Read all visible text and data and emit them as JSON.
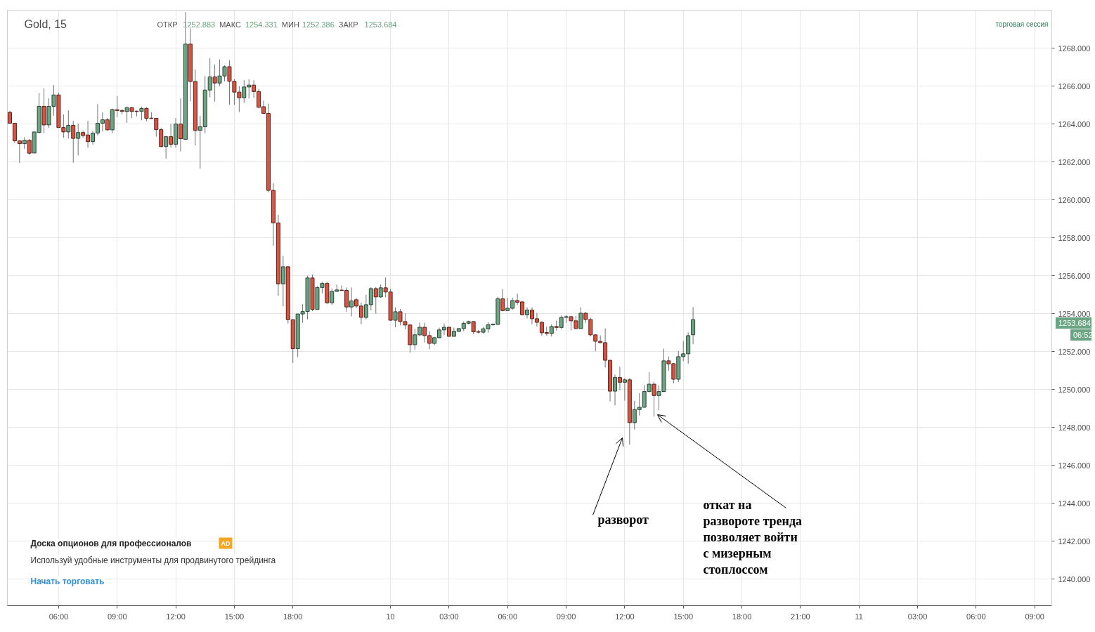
{
  "chart_data": {
    "type": "candlestick",
    "title": "Gold, 15",
    "categories": [
      null,
      null,
      null,
      null,
      null,
      null,
      null,
      null,
      null,
      null,
      "06:00",
      null,
      null,
      null,
      null,
      null,
      null,
      null,
      null,
      null,
      null,
      null,
      "09:00",
      null,
      null,
      null,
      null,
      null,
      null,
      null,
      null,
      null,
      null,
      null,
      "12:00",
      null,
      null,
      null,
      null,
      null,
      null,
      null,
      null,
      null,
      null,
      null,
      "15:00",
      null,
      null,
      null,
      null,
      null,
      null,
      null,
      null,
      null,
      null,
      null,
      "18:00",
      null,
      null,
      null,
      null,
      null,
      null,
      null,
      null,
      null,
      null,
      null,
      null,
      null,
      null,
      null,
      null,
      null,
      null,
      null,
      "10",
      null,
      null,
      null,
      null,
      null,
      null,
      null,
      null,
      null,
      null,
      null,
      "03:00",
      null,
      null,
      null,
      null,
      null,
      null,
      null,
      null,
      null,
      null,
      null,
      "06:00",
      null,
      null,
      null,
      null,
      null,
      null,
      null,
      null,
      null,
      null,
      null,
      "09:00",
      null,
      null,
      null,
      null,
      null,
      null,
      null,
      null,
      null,
      null,
      null,
      "12:00",
      null,
      null,
      null,
      null,
      null,
      null,
      null,
      null,
      null,
      null,
      null,
      "15:00",
      null,
      null,
      null,
      null,
      null,
      null,
      null,
      null,
      null,
      null,
      null,
      "18:00",
      null,
      null,
      null,
      null,
      null,
      null,
      null,
      null,
      null,
      null,
      null,
      "21:00",
      null,
      null,
      null,
      null,
      null,
      null,
      null,
      null,
      null,
      null,
      null,
      "11",
      null,
      null,
      null,
      null,
      null,
      null,
      null,
      null,
      null,
      null,
      null,
      "03:00",
      null,
      null,
      null,
      null,
      null,
      null,
      null,
      null,
      null,
      null,
      null,
      "06:00",
      null,
      null,
      null,
      null,
      null,
      null,
      null,
      null,
      null,
      null,
      null,
      "09:00",
      null,
      null,
      null
    ],
    "ohlc": [
      [
        1264.61,
        1264.7,
        1264.04,
        1264.04
      ],
      [
        1264.04,
        1264.04,
        1262.99,
        1263.11
      ],
      [
        1263.11,
        1263.11,
        1261.94,
        1262.96
      ],
      [
        1262.96,
        1263.3,
        1262.68,
        1263.14
      ],
      [
        1263.14,
        1263.2,
        1262.36,
        1262.46
      ],
      [
        1262.47,
        1263.6,
        1262.45,
        1263.58
      ],
      [
        1263.55,
        1265.63,
        1263.52,
        1264.93
      ],
      [
        1264.93,
        1265.88,
        1263.52,
        1263.95
      ],
      [
        1263.95,
        1265.35,
        1263.8,
        1264.93
      ],
      [
        1264.93,
        1266.05,
        1264.43,
        1265.53
      ],
      [
        1265.53,
        1265.65,
        1263.81,
        1263.81
      ],
      [
        1263.81,
        1264.5,
        1263.27,
        1263.58
      ],
      [
        1263.58,
        1264.72,
        1263.23,
        1263.93
      ],
      [
        1263.93,
        1264.16,
        1261.96,
        1263.24
      ],
      [
        1263.24,
        1264.01,
        1262.34,
        1263.55
      ],
      [
        1263.55,
        1263.66,
        1263.27,
        1263.39
      ],
      [
        1263.42,
        1264.16,
        1262.75,
        1263.07
      ],
      [
        1263.07,
        1263.64,
        1262.92,
        1263.52
      ],
      [
        1263.52,
        1265.04,
        1263.39,
        1264.04
      ],
      [
        1264.04,
        1264.61,
        1263.61,
        1264.22
      ],
      [
        1264.22,
        1264.32,
        1263.64,
        1263.69
      ],
      [
        1263.69,
        1264.82,
        1263.52,
        1264.76
      ],
      [
        1264.75,
        1265.47,
        1264.36,
        1264.71
      ],
      [
        1264.71,
        1264.78,
        1264.51,
        1264.66
      ],
      [
        1264.66,
        1264.92,
        1264.06,
        1264.86
      ],
      [
        1264.86,
        1264.91,
        1264.31,
        1264.66
      ],
      [
        1264.68,
        1264.7,
        1264.4,
        1264.66
      ],
      [
        1264.66,
        1264.92,
        1264.2,
        1264.82
      ],
      [
        1264.82,
        1264.88,
        1264.14,
        1264.3
      ],
      [
        1264.31,
        1264.61,
        1264.26,
        1264.29
      ],
      [
        1264.3,
        1264.32,
        1263.33,
        1263.7
      ],
      [
        1263.7,
        1263.8,
        1262.77,
        1262.81
      ],
      [
        1262.81,
        1263.35,
        1262.17,
        1263.33
      ],
      [
        1263.33,
        1264.01,
        1262.75,
        1262.93
      ],
      [
        1262.93,
        1264.32,
        1262.75,
        1264.0
      ],
      [
        1264.0,
        1265.35,
        1262.55,
        1263.22
      ],
      [
        1263.19,
        1269.9,
        1263.17,
        1268.21
      ],
      [
        1268.21,
        1269.04,
        1265.19,
        1266.24
      ],
      [
        1266.24,
        1266.87,
        1262.87,
        1263.66
      ],
      [
        1263.66,
        1264.42,
        1261.65,
        1263.85
      ],
      [
        1263.85,
        1266.53,
        1263.52,
        1265.79
      ],
      [
        1265.79,
        1267.47,
        1265.4,
        1266.48
      ],
      [
        1266.48,
        1267.14,
        1265.18,
        1266.16
      ],
      [
        1266.16,
        1267.4,
        1266.0,
        1266.53
      ],
      [
        1266.53,
        1267.09,
        1266.25,
        1267.02
      ],
      [
        1267.02,
        1267.37,
        1265.01,
        1266.25
      ],
      [
        1266.25,
        1266.37,
        1265.01,
        1265.68
      ],
      [
        1265.68,
        1266.0,
        1264.63,
        1265.38
      ],
      [
        1265.38,
        1266.31,
        1265.11,
        1265.95
      ],
      [
        1265.95,
        1266.37,
        1265.34,
        1266.05
      ],
      [
        1266.05,
        1266.31,
        1265.38,
        1265.71
      ],
      [
        1265.71,
        1265.85,
        1264.84,
        1264.88
      ],
      [
        1264.91,
        1265.23,
        1264.53,
        1264.56
      ],
      [
        1264.56,
        1265.07,
        1260.39,
        1260.5
      ],
      [
        1260.5,
        1260.88,
        1257.58,
        1258.78
      ],
      [
        1258.78,
        1259.2,
        1254.94,
        1255.57
      ],
      [
        1255.57,
        1257.04,
        1254.39,
        1256.47
      ],
      [
        1256.47,
        1256.5,
        1253.48,
        1253.68
      ],
      [
        1253.68,
        1253.7,
        1251.4,
        1252.15
      ],
      [
        1252.15,
        1253.98,
        1251.71,
        1253.98
      ],
      [
        1253.98,
        1254.51,
        1253.52,
        1254.11
      ],
      [
        1254.11,
        1256.0,
        1253.7,
        1255.88
      ],
      [
        1255.88,
        1256.06,
        1254.14,
        1254.22
      ],
      [
        1254.22,
        1255.44,
        1254.2,
        1255.38
      ],
      [
        1255.38,
        1255.69,
        1255.07,
        1255.59
      ],
      [
        1255.59,
        1255.69,
        1254.51,
        1254.57
      ],
      [
        1254.57,
        1255.32,
        1254.45,
        1255.17
      ],
      [
        1255.17,
        1255.53,
        1255.16,
        1255.25
      ],
      [
        1255.24,
        1255.49,
        1255.2,
        1255.22
      ],
      [
        1255.23,
        1255.38,
        1254.1,
        1254.35
      ],
      [
        1254.35,
        1255.38,
        1253.85,
        1254.67
      ],
      [
        1254.73,
        1254.83,
        1254.28,
        1254.4
      ],
      [
        1254.4,
        1254.58,
        1253.44,
        1253.8
      ],
      [
        1253.8,
        1254.99,
        1253.69,
        1254.47
      ],
      [
        1254.47,
        1255.4,
        1254.16,
        1255.32
      ],
      [
        1255.32,
        1255.4,
        1254.0,
        1254.88
      ],
      [
        1254.88,
        1255.54,
        1254.83,
        1255.36
      ],
      [
        1255.36,
        1255.91,
        1254.86,
        1255.14
      ],
      [
        1255.14,
        1255.3,
        1253.63,
        1253.65
      ],
      [
        1253.65,
        1254.33,
        1253.28,
        1254.1
      ],
      [
        1254.1,
        1254.25,
        1253.38,
        1253.58
      ],
      [
        1253.58,
        1254.02,
        1253.17,
        1253.4
      ],
      [
        1253.4,
        1253.44,
        1251.94,
        1252.36
      ],
      [
        1252.36,
        1253.2,
        1252.09,
        1252.88
      ],
      [
        1252.88,
        1253.54,
        1252.8,
        1253.28
      ],
      [
        1253.28,
        1253.51,
        1252.48,
        1252.84
      ],
      [
        1252.84,
        1253.07,
        1252.12,
        1252.43
      ],
      [
        1252.43,
        1252.77,
        1252.33,
        1252.73
      ],
      [
        1252.73,
        1253.26,
        1252.7,
        1253.14
      ],
      [
        1253.14,
        1253.48,
        1252.86,
        1253.28
      ],
      [
        1253.28,
        1253.3,
        1252.8,
        1252.8
      ],
      [
        1252.8,
        1253.26,
        1252.79,
        1253.07
      ],
      [
        1253.06,
        1253.23,
        1253.04,
        1253.21
      ],
      [
        1253.21,
        1253.59,
        1253.07,
        1253.49
      ],
      [
        1253.49,
        1253.63,
        1253.44,
        1253.58
      ],
      [
        1253.58,
        1253.6,
        1252.93,
        1253.04
      ],
      [
        1253.05,
        1253.14,
        1252.96,
        1253.02
      ],
      [
        1253.02,
        1253.3,
        1252.94,
        1253.2
      ],
      [
        1253.2,
        1253.54,
        1252.99,
        1253.41
      ],
      [
        1253.41,
        1253.48,
        1253.36,
        1253.44
      ],
      [
        1253.43,
        1254.89,
        1253.42,
        1254.78
      ],
      [
        1254.78,
        1255.3,
        1254.12,
        1254.16
      ],
      [
        1254.16,
        1254.83,
        1254.15,
        1254.28
      ],
      [
        1254.28,
        1254.83,
        1254.21,
        1254.69
      ],
      [
        1254.69,
        1255.05,
        1254.46,
        1254.6
      ],
      [
        1254.62,
        1254.62,
        1253.9,
        1253.94
      ],
      [
        1253.94,
        1254.33,
        1253.75,
        1254.19
      ],
      [
        1254.19,
        1254.33,
        1253.44,
        1253.73
      ],
      [
        1253.73,
        1254.04,
        1253.32,
        1253.54
      ],
      [
        1253.54,
        1253.6,
        1252.83,
        1252.99
      ],
      [
        1253.0,
        1253.32,
        1252.83,
        1252.95
      ],
      [
        1252.95,
        1253.44,
        1252.79,
        1253.32
      ],
      [
        1253.32,
        1253.63,
        1253.11,
        1253.27
      ],
      [
        1253.27,
        1253.9,
        1253.2,
        1253.8
      ],
      [
        1253.8,
        1253.94,
        1253.51,
        1253.84
      ],
      [
        1253.84,
        1253.88,
        1253.1,
        1253.62
      ],
      [
        1253.62,
        1253.88,
        1253.2,
        1253.21
      ],
      [
        1253.21,
        1254.33,
        1253.2,
        1254.02
      ],
      [
        1254.02,
        1254.09,
        1253.51,
        1253.69
      ],
      [
        1253.69,
        1253.79,
        1252.8,
        1252.88
      ],
      [
        1252.88,
        1252.89,
        1252.02,
        1252.54
      ],
      [
        1252.54,
        1252.85,
        1252.43,
        1252.47
      ],
      [
        1252.47,
        1253.22,
        1251.16,
        1251.54
      ],
      [
        1251.54,
        1251.56,
        1249.37,
        1249.91
      ],
      [
        1249.91,
        1250.78,
        1249.16,
        1250.63
      ],
      [
        1250.63,
        1251.19,
        1249.96,
        1250.38
      ],
      [
        1250.38,
        1250.6,
        1249.41,
        1250.51
      ],
      [
        1250.51,
        1250.6,
        1247.09,
        1248.25
      ],
      [
        1248.25,
        1249.4,
        1247.89,
        1248.94
      ],
      [
        1248.94,
        1249.8,
        1248.63,
        1249.06
      ],
      [
        1249.06,
        1250.23,
        1249.05,
        1249.89
      ],
      [
        1249.89,
        1250.91,
        1249.86,
        1250.28
      ],
      [
        1250.28,
        1250.42,
        1248.57,
        1249.68
      ],
      [
        1249.68,
        1250.23,
        1248.9,
        1249.89
      ],
      [
        1249.89,
        1252.15,
        1249.86,
        1251.51
      ],
      [
        1251.51,
        1251.74,
        1250.98,
        1251.35
      ],
      [
        1251.36,
        1251.38,
        1250.33,
        1250.54
      ],
      [
        1250.54,
        1252.02,
        1250.38,
        1251.73
      ],
      [
        1251.73,
        1252.56,
        1251.49,
        1251.88
      ],
      [
        1251.88,
        1253.01,
        1251.35,
        1252.84
      ],
      [
        1252.883,
        1254.331,
        1252.386,
        1253.684
      ],
      null,
      null,
      null,
      null,
      null,
      null,
      null,
      null,
      null,
      null,
      null,
      null,
      null,
      null,
      null,
      null,
      null,
      null,
      null,
      null,
      null,
      null,
      null,
      null,
      null,
      null,
      null,
      null,
      null,
      null,
      null,
      null,
      null,
      null,
      null,
      null,
      null,
      null,
      null,
      null,
      null,
      null,
      null,
      null,
      null,
      null,
      null,
      null,
      null,
      null,
      null,
      null,
      null,
      null,
      null,
      null,
      null,
      null,
      null,
      null,
      null,
      null,
      null,
      null,
      null,
      null,
      null,
      null,
      null,
      null,
      null,
      null,
      null
    ],
    "colors": [
      "#d75442",
      "#d75442",
      "#d75442",
      "#6ba583",
      "#d75442",
      "#6ba583",
      "#6ba583",
      "#d75442",
      "#6ba583",
      "#6ba583",
      "#d75442",
      "#d75442",
      "#6ba583",
      "#d75442",
      "#6ba583",
      "#d75442",
      "#d75442",
      "#6ba583",
      "#6ba583",
      "#6ba583",
      "#d75442",
      "#6ba583",
      "#d75442",
      "#d75442",
      "#6ba583",
      "#d75442",
      "#d75442",
      "#6ba583",
      "#d75442",
      "#d75442",
      "#d75442",
      "#d75442",
      "#6ba583",
      "#d75442",
      "#6ba583",
      "#d75442",
      "#6ba583",
      "#d75442",
      "#d75442",
      "#6ba583",
      "#6ba583",
      "#6ba583",
      "#d75442",
      "#6ba583",
      "#6ba583",
      "#d75442",
      "#d75442",
      "#d75442",
      "#6ba583",
      "#6ba583",
      "#d75442",
      "#d75442",
      "#d75442",
      "#d75442",
      "#d75442",
      "#d75442",
      "#6ba583",
      "#d75442",
      "#d75442",
      "#6ba583",
      "#6ba583",
      "#6ba583",
      "#d75442",
      "#6ba583",
      "#6ba583",
      "#d75442",
      "#6ba583",
      "#6ba583",
      "#d75442",
      "#d75442",
      "#6ba583",
      "#d75442",
      "#d75442",
      "#6ba583",
      "#6ba583",
      "#d75442",
      "#6ba583",
      "#d75442",
      "#d75442",
      "#6ba583",
      "#d75442",
      "#d75442",
      "#d75442",
      "#6ba583",
      "#6ba583",
      "#d75442",
      "#d75442",
      "#6ba583",
      "#6ba583",
      "#6ba583",
      "#d75442",
      "#6ba583",
      "#6ba583",
      "#6ba583",
      "#6ba583",
      "#d75442",
      "#d75442",
      "#6ba583",
      "#6ba583",
      "#6ba583",
      "#6ba583",
      "#d75442",
      "#6ba583",
      "#6ba583",
      "#d75442",
      "#d75442",
      "#6ba583",
      "#d75442",
      "#d75442",
      "#d75442",
      "#d75442",
      "#6ba583",
      "#d75442",
      "#6ba583",
      "#6ba583",
      "#d75442",
      "#d75442",
      "#6ba583",
      "#d75442",
      "#d75442",
      "#d75442",
      "#d75442",
      "#d75442",
      "#d75442",
      "#6ba583",
      "#d75442",
      "#6ba583",
      "#d75442",
      "#6ba583",
      "#6ba583",
      "#6ba583",
      "#6ba583",
      "#d75442",
      "#6ba583",
      "#6ba583",
      "#d75442",
      "#d75442",
      "#6ba583",
      "#6ba583",
      "#6ba583",
      "#6ba583",
      null,
      null,
      null,
      null,
      null,
      null,
      null,
      null,
      null,
      null,
      null,
      null,
      null,
      null,
      null,
      null,
      null,
      null,
      null,
      null,
      null,
      null,
      null,
      null,
      null,
      null,
      null,
      null,
      null,
      null,
      null,
      null,
      null,
      null,
      null,
      null,
      null,
      null,
      null,
      null,
      null,
      null,
      null,
      null,
      null,
      null,
      null,
      null,
      null,
      null,
      null,
      null,
      null,
      null,
      null,
      null,
      null,
      null,
      null,
      null,
      null,
      null,
      null,
      null,
      null,
      null,
      null,
      null,
      null,
      null,
      null,
      null,
      null
    ],
    "ylim": [
      1238.6,
      1270
    ],
    "yticks": [
      {
        "value": 1240,
        "label": "1240.000"
      },
      {
        "value": 1242,
        "label": "1242.000"
      },
      {
        "value": 1244,
        "label": "1244.000"
      },
      {
        "value": 1246,
        "label": "1246.000"
      },
      {
        "value": 1248,
        "label": "1248.000"
      },
      {
        "value": 1250,
        "label": "1250.000"
      },
      {
        "value": 1252,
        "label": "1252.000"
      },
      {
        "value": 1254,
        "label": "1254.000"
      },
      {
        "value": 1256,
        "label": "1256.000"
      },
      {
        "value": 1258,
        "label": "1258.000"
      },
      {
        "value": 1260,
        "label": "1260.000"
      },
      {
        "value": 1262,
        "label": "1262.000"
      },
      {
        "value": 1264,
        "label": "1264.000"
      },
      {
        "value": 1266,
        "label": "1266.000"
      },
      {
        "value": 1268,
        "label": "1268.000"
      }
    ],
    "grid": true,
    "annotations": [
      "ОТКР 1252.883 МАКС 1254.331 МИН 1252.386 ЗАКР 1253.684",
      "торговая сессия",
      "1253.684",
      "06:52",
      "разворот",
      "откат на\nразвороте тренда\nпозволяет войти\nс мизерным\nстоплоссом",
      "Доска опционов для профессионалов",
      "AD",
      "Используй удобные инструменты для продвинутого трейдинга",
      "Начать торговать"
    ]
  }
}
